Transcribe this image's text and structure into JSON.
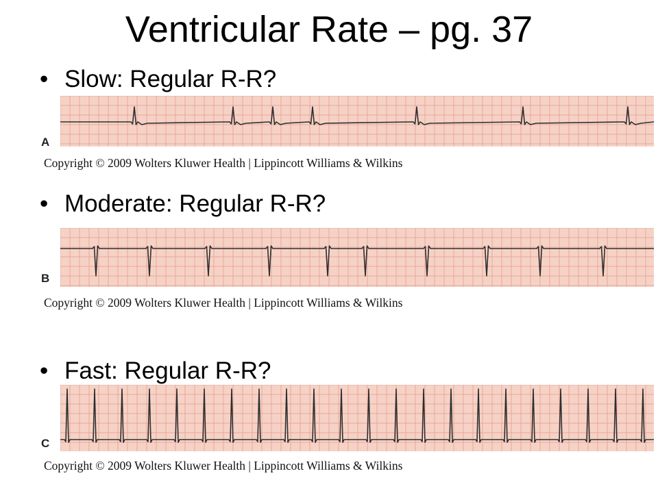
{
  "slide": {
    "title": "Ventricular Rate – pg. 37",
    "bullet_glyph": "•",
    "sections": [
      {
        "label": "Slow: Regular R-R?",
        "strip_letter": "A",
        "copyright": "Copyright © 2009 Wolters Kluwer Health | Lippincott Williams & Wilkins",
        "beats": [
          108,
          252,
          310,
          368,
          520,
          675,
          828
        ]
      },
      {
        "label": "Moderate:  Regular R-R?",
        "strip_letter": "B",
        "copyright": "Copyright © 2009 Wolters Kluwer Health | Lippincott Williams & Wilkins",
        "beats": [
          52,
          130,
          216,
          305,
          390,
          445,
          535,
          622,
          700,
          792
        ]
      },
      {
        "label": "Fast: Regular R-R?",
        "strip_letter": "C",
        "copyright": "Copyright © 2009 Wolters Kluwer Health | Lippincott Williams & Wilkins",
        "beats": [
          10,
          50,
          90,
          130,
          170,
          210,
          250,
          290,
          330,
          370,
          410,
          450,
          490,
          530,
          570,
          610,
          650,
          690,
          730,
          770,
          810,
          850
        ]
      }
    ],
    "colors": {
      "grid_background": "#f6d2c6",
      "grid_line": "#e8a898",
      "trace": "#2e2e2e"
    }
  }
}
